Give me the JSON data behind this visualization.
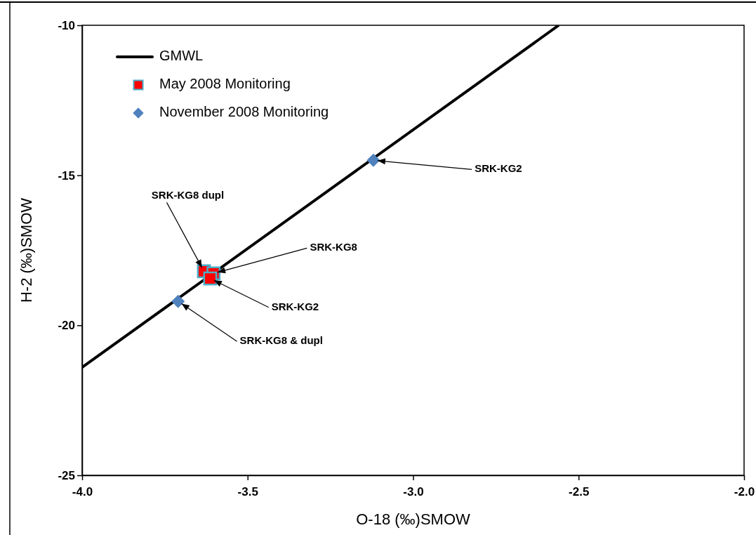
{
  "chart_data": {
    "type": "scatter",
    "xlabel": "O-18 (‰)SMOW",
    "ylabel": "H-2 (‰)SMOW",
    "xlim": [
      -4.0,
      -2.0
    ],
    "xticks": [
      {
        "value": -4,
        "label": "-4.0"
      },
      {
        "value": -3.5,
        "label": "-3.5"
      },
      {
        "value": -3,
        "label": "-3.0"
      },
      {
        "value": -2.5,
        "label": "-2.5"
      },
      {
        "value": -2,
        "label": "-2.0"
      }
    ],
    "ylim": [
      -25,
      -10
    ],
    "yticks": [
      -25,
      -20,
      -15,
      -10
    ],
    "grid": false,
    "legend": "top left",
    "series": [
      {
        "name": "GMWL",
        "type": "line",
        "color": "#000000",
        "marker": "none",
        "line_style": "solid",
        "x": [
          -4.0,
          -2.56
        ],
        "values": [
          -21.4,
          -10
        ]
      },
      {
        "name": "May 2008 Monitoring",
        "color": "#ff0000",
        "marker": "square",
        "x": [
          -3.632,
          -3.603,
          -3.613
        ],
        "values": [
          -18.2,
          -18.27,
          -18.44
        ]
      },
      {
        "name": "November 2008 Monitoring",
        "color": "#4f81bd",
        "marker": "diamond",
        "x": [
          -3.12,
          -3.71
        ],
        "values": [
          -14.5,
          -19.2
        ]
      }
    ],
    "annotations": [
      {
        "text": "SRK-KG2",
        "x": -3.12,
        "y": -14.5
      },
      {
        "text": "SRK-KG8 dupl",
        "x": -3.632,
        "y": -18.2
      },
      {
        "text": "SRK-KG8",
        "x": -3.603,
        "y": -18.27
      },
      {
        "text": "SRK-KG2",
        "x": -3.613,
        "y": -18.44
      },
      {
        "text": "SRK-KG8 & dupl",
        "x": -3.71,
        "y": -19.2
      }
    ]
  }
}
